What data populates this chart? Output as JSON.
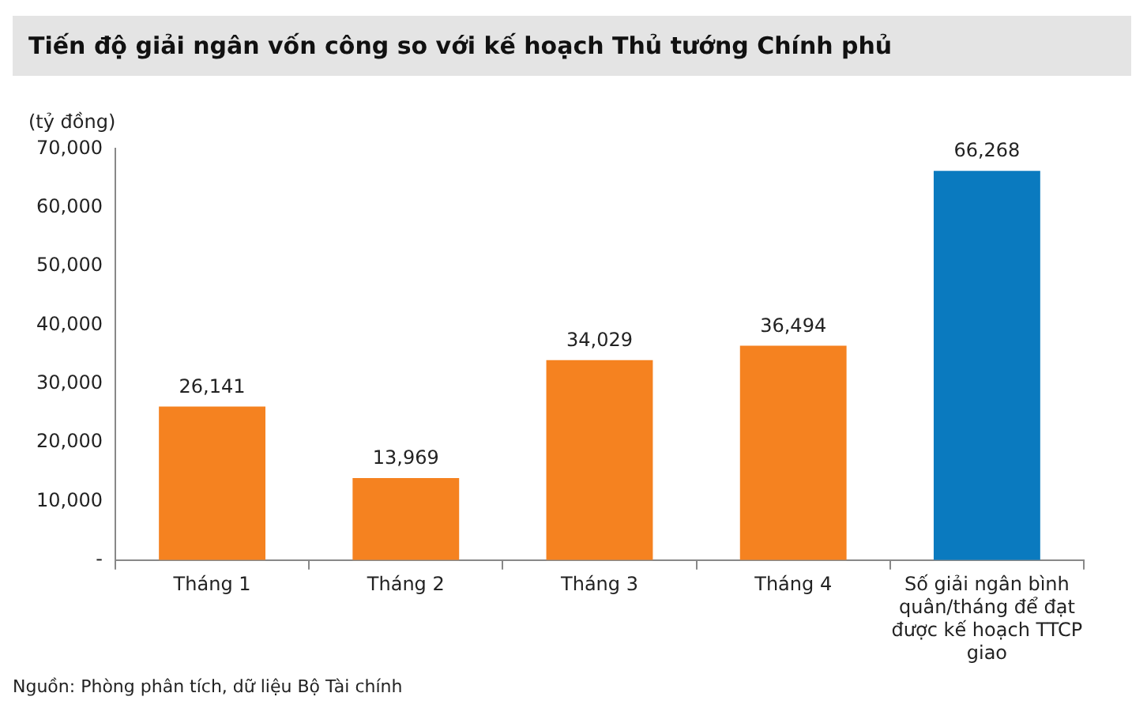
{
  "chart_data": {
    "type": "bar",
    "title": "Tiến độ giải ngân vốn công so với kế hoạch Thủ tướng Chính phủ",
    "ylabel": "(tỷ đồng)",
    "categories": [
      "Tháng 1",
      "Tháng 2",
      "Tháng 3",
      "Tháng 4",
      "Số giải ngân bình quân/tháng để đạt được kế hoạch TTCP giao"
    ],
    "values": [
      26141,
      13969,
      34029,
      36494,
      66268
    ],
    "colors": [
      "#f58220",
      "#f58220",
      "#f58220",
      "#f58220",
      "#0a7abf"
    ],
    "value_labels": [
      "26,141",
      "13,969",
      "34,029",
      "36,494",
      "66,268"
    ],
    "ylim": [
      0,
      70000
    ],
    "yticks": [
      {
        "value": 0,
        "label": "-"
      },
      {
        "value": 10000,
        "label": "10,000"
      },
      {
        "value": 20000,
        "label": "20,000"
      },
      {
        "value": 30000,
        "label": "30,000"
      },
      {
        "value": 40000,
        "label": "40,000"
      },
      {
        "value": 50000,
        "label": "50,000"
      },
      {
        "value": 60000,
        "label": "60,000"
      },
      {
        "value": 70000,
        "label": "70,000"
      }
    ],
    "grid": false,
    "legend": false,
    "annotations": [
      "Nguồn: Phòng phân tích, dữ liệu Bộ Tài chính"
    ]
  }
}
